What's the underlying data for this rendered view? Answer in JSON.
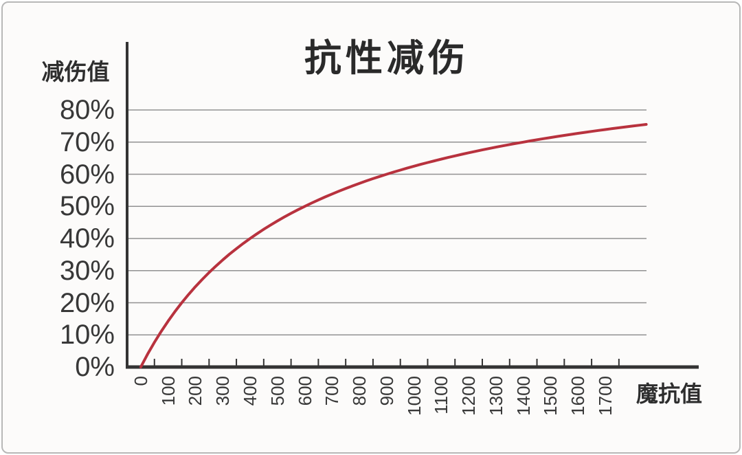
{
  "frame": {
    "background": "#fcfbfa",
    "border_color": "#b7b7b7"
  },
  "chart_data": {
    "type": "line",
    "title": "抗性减伤",
    "ylabel": "减伤值",
    "xlabel": "魔抗值",
    "x_tick_labels": [
      "0",
      "100",
      "200",
      "300",
      "400",
      "500",
      "600",
      "700",
      "800",
      "900",
      "1000",
      "1100",
      "1200",
      "1300",
      "1400",
      "1500",
      "1600",
      "1700"
    ],
    "y_tick_labels": [
      "0%",
      "10%",
      "20%",
      "30%",
      "40%",
      "50%",
      "60%",
      "70%",
      "80%"
    ],
    "xlim": [
      0,
      1850
    ],
    "ylim_percent": [
      0,
      80
    ],
    "grid": "horizontal-only",
    "legend": false,
    "line_color": "#b8323e",
    "axis_color": "#333333",
    "grid_color": "#919191",
    "text_color": "#383838",
    "formula": "reduction% = 100 * resist / (resist + 600)",
    "formula_constant_k": 600,
    "series": [
      {
        "name": "抗性减伤",
        "x": [
          0,
          100,
          200,
          300,
          400,
          500,
          600,
          700,
          800,
          900,
          1000,
          1100,
          1200,
          1300,
          1400,
          1500,
          1600,
          1700,
          1800
        ],
        "y_percent": [
          0,
          14.3,
          25.0,
          33.3,
          40.0,
          45.5,
          50.0,
          53.8,
          57.1,
          60.0,
          62.5,
          64.7,
          66.7,
          68.4,
          70.0,
          71.4,
          72.7,
          73.9,
          75.0
        ]
      }
    ]
  }
}
